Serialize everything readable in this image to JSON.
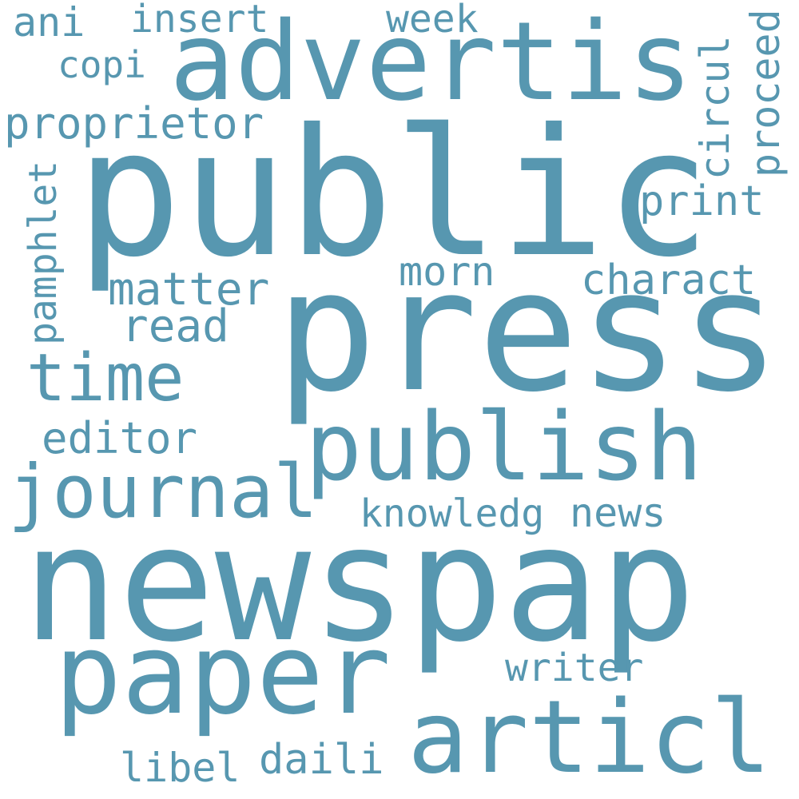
{
  "cloud": {
    "color": "#5797b0",
    "background": "#ffffff",
    "words": {
      "newspap": "newspap",
      "public": "public",
      "press": "press",
      "advertis": "advertis",
      "publish": "publish",
      "paper": "paper",
      "articl": "articl",
      "journal": "journal",
      "time": "time",
      "proprietor": "proprietor",
      "copi": "copi",
      "ani": "ani",
      "insert": "insert",
      "week": "week",
      "circul": "circul",
      "proceed": "proceed",
      "print": "print",
      "morn": "morn",
      "charact": "charact",
      "matter": "matter",
      "read": "read",
      "pamphlet": "pamphlet",
      "editor": "editor",
      "knowledg": "knowledg",
      "news": "news",
      "writer": "writer",
      "daili": "daili",
      "libel": "libel"
    }
  }
}
